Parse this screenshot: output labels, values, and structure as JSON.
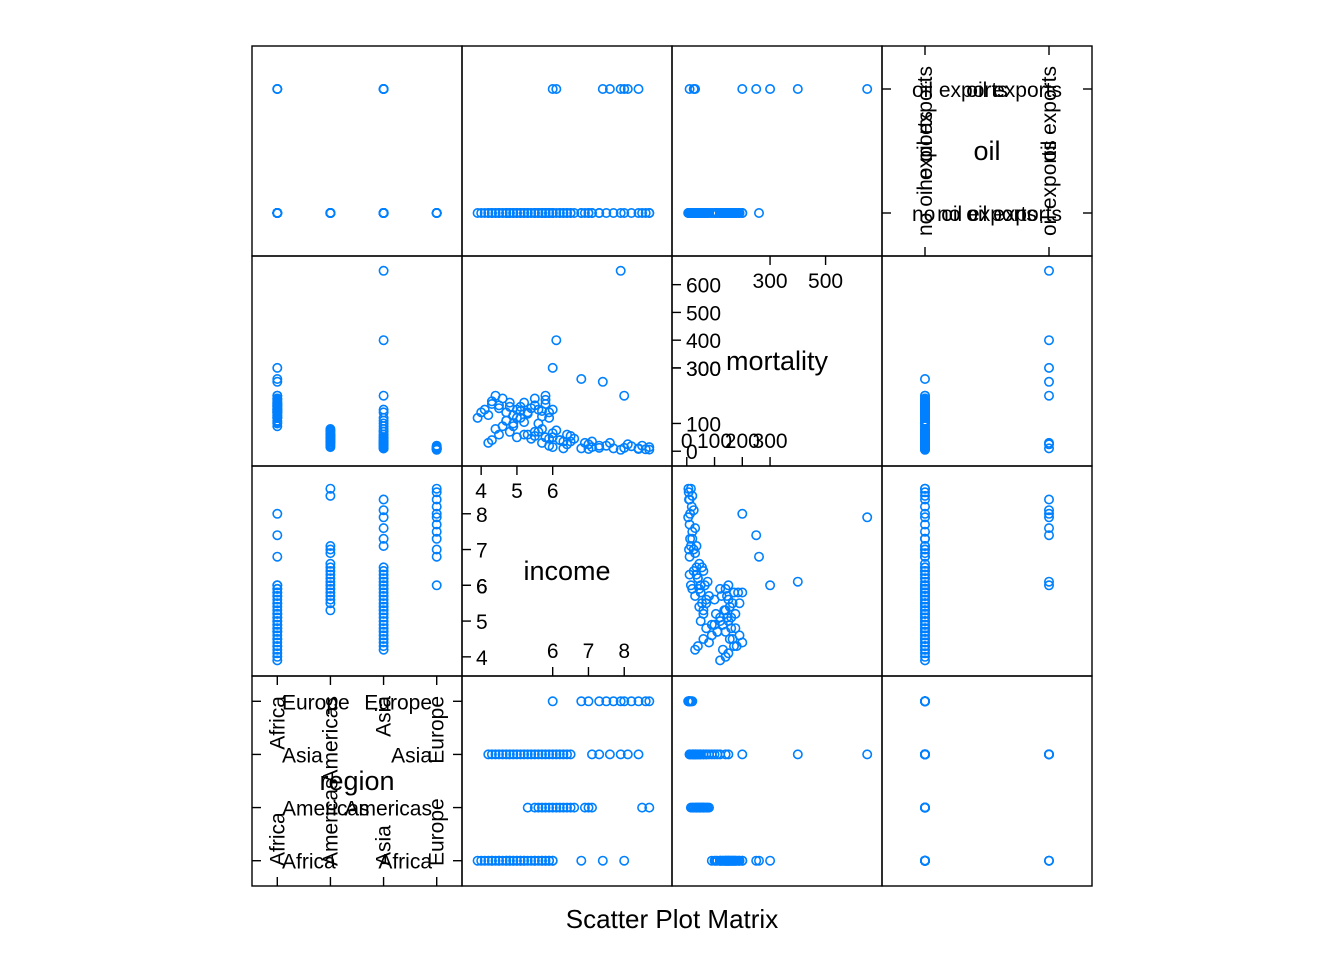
{
  "chart_data": {
    "type": "scatter",
    "title": "Scatter Plot Matrix",
    "variables": [
      "region",
      "income",
      "mortality",
      "oil"
    ],
    "point_color": "#0080ff",
    "grid": false,
    "legend": "none",
    "diagonal": {
      "region": {
        "name": "region",
        "levels": [
          "Africa",
          "Americas",
          "Asia",
          "Europe"
        ]
      },
      "income": {
        "name": "income",
        "range": [
          3.8,
          9.0
        ],
        "ticks_left": [
          "4",
          "5",
          "6"
        ],
        "ticks_bottom": [
          "6",
          "7",
          "8"
        ],
        "ticks_top": [
          "6",
          "7",
          "8"
        ],
        "ticks_right": [
          "4",
          "5",
          "6"
        ]
      },
      "mortality": {
        "name": "mortality",
        "range": [
          -10,
          660
        ],
        "ticks_left": [
          "0",
          "100",
          "300"
        ],
        "ticks_bottom": [
          "0",
          "100",
          "200",
          "300"
        ],
        "ticks_top": [
          "300",
          "400",
          "500",
          "600"
        ],
        "ticks_right": [
          "300",
          "500"
        ]
      },
      "oil": {
        "name": "oil",
        "levels": [
          "no oil exports",
          "oil exports"
        ]
      }
    },
    "data": {
      "region": [
        "Africa",
        "Africa",
        "Africa",
        "Africa",
        "Africa",
        "Africa",
        "Africa",
        "Africa",
        "Africa",
        "Africa",
        "Africa",
        "Africa",
        "Africa",
        "Africa",
        "Africa",
        "Africa",
        "Africa",
        "Africa",
        "Africa",
        "Africa",
        "Africa",
        "Africa",
        "Africa",
        "Africa",
        "Africa",
        "Africa",
        "Africa",
        "Africa",
        "Africa",
        "Africa",
        "Africa",
        "Africa",
        "Africa",
        "Africa",
        "Africa",
        "Africa",
        "Africa",
        "Africa",
        "Americas",
        "Americas",
        "Americas",
        "Americas",
        "Americas",
        "Americas",
        "Americas",
        "Americas",
        "Americas",
        "Americas",
        "Americas",
        "Americas",
        "Americas",
        "Americas",
        "Americas",
        "Americas",
        "Americas",
        "Americas",
        "Asia",
        "Asia",
        "Asia",
        "Asia",
        "Asia",
        "Asia",
        "Asia",
        "Asia",
        "Asia",
        "Asia",
        "Asia",
        "Asia",
        "Asia",
        "Asia",
        "Asia",
        "Asia",
        "Asia",
        "Asia",
        "Asia",
        "Asia",
        "Asia",
        "Asia",
        "Asia",
        "Asia",
        "Asia",
        "Asia",
        "Asia",
        "Asia",
        "Asia",
        "Asia",
        "Europe",
        "Europe",
        "Europe",
        "Europe",
        "Europe",
        "Europe",
        "Europe",
        "Europe",
        "Europe",
        "Europe",
        "Europe",
        "Europe"
      ],
      "income": [
        3.9,
        4.0,
        4.1,
        4.2,
        4.3,
        4.3,
        4.4,
        4.5,
        4.5,
        4.6,
        4.7,
        4.7,
        4.8,
        4.8,
        4.9,
        4.9,
        5.0,
        5.0,
        5.1,
        5.1,
        5.2,
        5.2,
        5.3,
        5.4,
        5.5,
        5.5,
        5.6,
        5.7,
        5.7,
        5.8,
        5.8,
        5.9,
        5.9,
        6.0,
        6.0,
        6.8,
        8.0,
        7.4,
        5.3,
        5.5,
        5.6,
        5.7,
        5.8,
        5.9,
        6.0,
        6.1,
        6.2,
        6.3,
        6.4,
        6.5,
        6.6,
        6.9,
        7.0,
        7.1,
        8.5,
        8.7,
        4.2,
        4.3,
        4.4,
        4.5,
        4.6,
        4.7,
        4.8,
        4.9,
        5.0,
        5.1,
        5.2,
        5.3,
        5.4,
        5.5,
        5.6,
        5.7,
        5.9,
        6.0,
        6.2,
        6.3,
        6.4,
        6.5,
        7.1,
        7.3,
        7.6,
        8.1,
        8.4,
        7.9,
        6.1,
        5.8,
        6.0,
        6.8,
        7.0,
        7.3,
        7.5,
        7.7,
        7.9,
        8.0,
        8.2,
        8.4,
        8.6,
        8.7
      ],
      "mortality": [
        120,
        140,
        150,
        130,
        180,
        170,
        200,
        155,
        165,
        190,
        110,
        140,
        160,
        175,
        130,
        90,
        120,
        150,
        145,
        160,
        175,
        105,
        135,
        155,
        165,
        190,
        100,
        125,
        145,
        185,
        170,
        140,
        120,
        150,
        300,
        260,
        200,
        250,
        60,
        55,
        70,
        80,
        50,
        45,
        65,
        75,
        40,
        35,
        60,
        55,
        45,
        30,
        25,
        35,
        20,
        15,
        30,
        40,
        80,
        60,
        90,
        110,
        70,
        100,
        50,
        120,
        60,
        140,
        45,
        70,
        150,
        30,
        20,
        50,
        40,
        10,
        25,
        35,
        15,
        20,
        30,
        25,
        10,
        650,
        400,
        200,
        15,
        10,
        8,
        12,
        20,
        10,
        5,
        12,
        18,
        8,
        7,
        6
      ],
      "oil": [
        "no oil exports",
        "no oil exports",
        "no oil exports",
        "no oil exports",
        "no oil exports",
        "no oil exports",
        "no oil exports",
        "no oil exports",
        "no oil exports",
        "no oil exports",
        "no oil exports",
        "no oil exports",
        "no oil exports",
        "no oil exports",
        "no oil exports",
        "no oil exports",
        "no oil exports",
        "no oil exports",
        "no oil exports",
        "no oil exports",
        "no oil exports",
        "no oil exports",
        "no oil exports",
        "no oil exports",
        "no oil exports",
        "no oil exports",
        "no oil exports",
        "no oil exports",
        "no oil exports",
        "no oil exports",
        "no oil exports",
        "no oil exports",
        "no oil exports",
        "no oil exports",
        "oil exports",
        "no oil exports",
        "oil exports",
        "oil exports",
        "no oil exports",
        "no oil exports",
        "no oil exports",
        "no oil exports",
        "no oil exports",
        "no oil exports",
        "no oil exports",
        "no oil exports",
        "no oil exports",
        "no oil exports",
        "no oil exports",
        "no oil exports",
        "no oil exports",
        "no oil exports",
        "no oil exports",
        "no oil exports",
        "no oil exports",
        "no oil exports",
        "no oil exports",
        "no oil exports",
        "no oil exports",
        "no oil exports",
        "no oil exports",
        "no oil exports",
        "no oil exports",
        "no oil exports",
        "no oil exports",
        "no oil exports",
        "no oil exports",
        "no oil exports",
        "no oil exports",
        "no oil exports",
        "no oil exports",
        "no oil exports",
        "no oil exports",
        "no oil exports",
        "no oil exports",
        "no oil exports",
        "no oil exports",
        "no oil exports",
        "no oil exports",
        "no oil exports",
        "oil exports",
        "oil exports",
        "oil exports",
        "oil exports",
        "oil exports",
        "no oil exports",
        "no oil exports",
        "no oil exports",
        "no oil exports",
        "no oil exports",
        "no oil exports",
        "no oil exports",
        "no oil exports",
        "no oil exports",
        "no oil exports",
        "no oil exports",
        "no oil exports",
        "no oil exports"
      ]
    }
  }
}
